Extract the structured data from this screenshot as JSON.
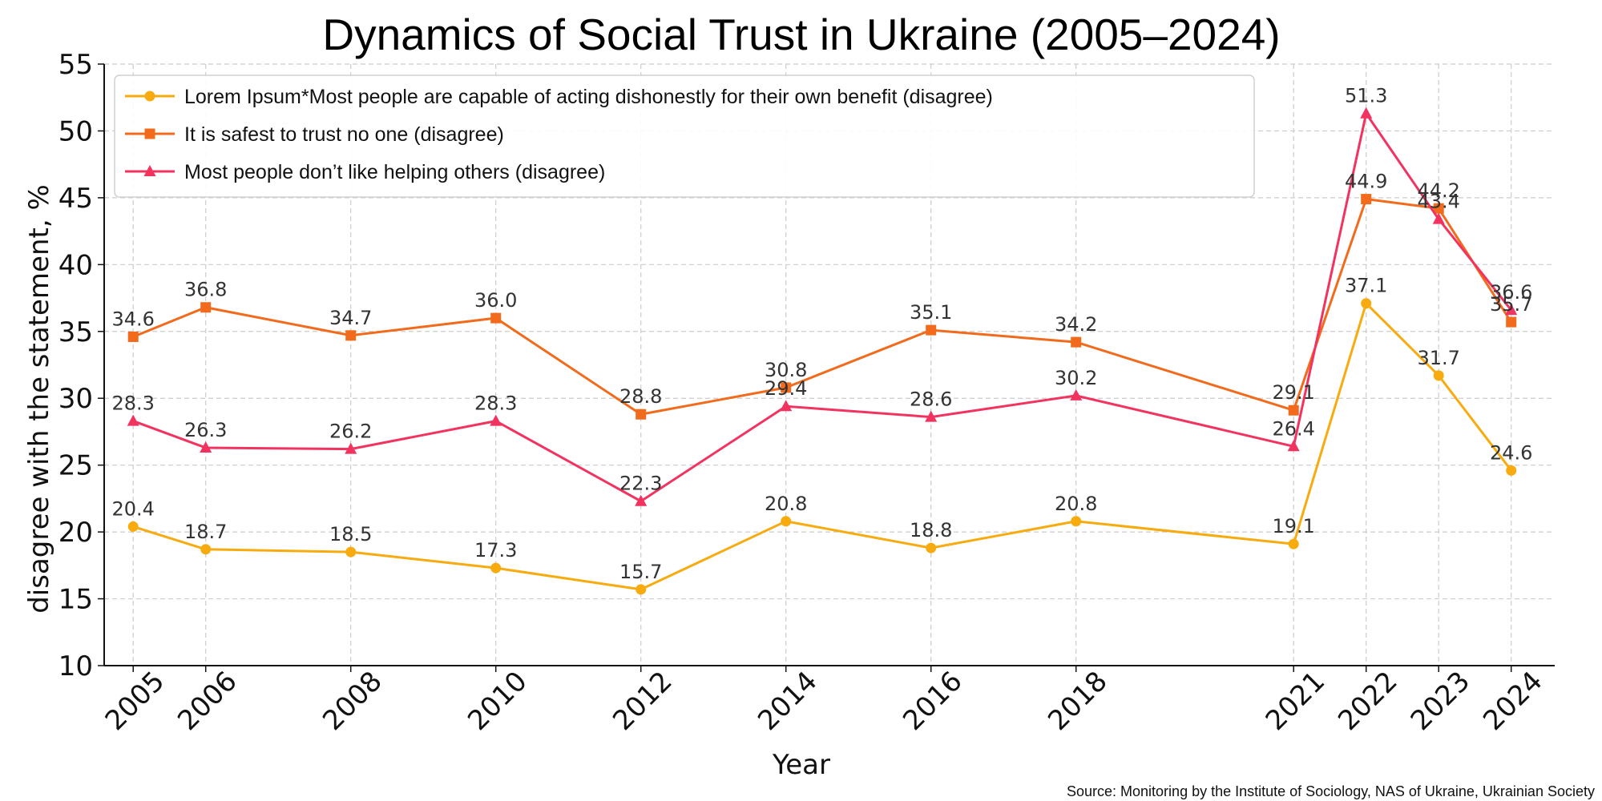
{
  "chart_data": {
    "type": "line",
    "title": "Dynamics of Social Trust in Ukraine (2005–2024)",
    "xlabel": "Year",
    "ylabel": "disagree with the statement, %",
    "source": "Source: Monitoring by the Institute of Sociology, NAS of Ukraine, Ukrainian Society",
    "ylim": [
      10,
      55
    ],
    "yticks": [
      10,
      15,
      20,
      25,
      30,
      35,
      40,
      45,
      50,
      55
    ],
    "grid": true,
    "legend_position": "top-left",
    "x": [
      2005,
      2006,
      2008,
      2010,
      2012,
      2014,
      2016,
      2018,
      2021,
      2022,
      2023,
      2024
    ],
    "series": [
      {
        "name": "Lorem Ipsum*Most people are capable of acting dishonestly for their own benefit (disagree)",
        "color": "#f7ab0e",
        "marker": "circle",
        "values": [
          20.4,
          18.7,
          18.5,
          17.3,
          15.7,
          20.8,
          18.8,
          20.8,
          19.1,
          37.1,
          31.7,
          24.6
        ]
      },
      {
        "name": "It is safest to trust no one (disagree)",
        "color": "#f26a1b",
        "marker": "square",
        "values": [
          34.6,
          36.8,
          34.7,
          36.0,
          28.8,
          30.8,
          35.1,
          34.2,
          29.1,
          44.9,
          44.2,
          35.7
        ]
      },
      {
        "name": "Most people don’t like helping others (disagree)",
        "color": "#f2335f",
        "marker": "triangle",
        "values": [
          28.3,
          26.3,
          26.2,
          28.3,
          22.3,
          29.4,
          28.6,
          30.2,
          26.4,
          51.3,
          43.4,
          36.6
        ]
      }
    ]
  }
}
